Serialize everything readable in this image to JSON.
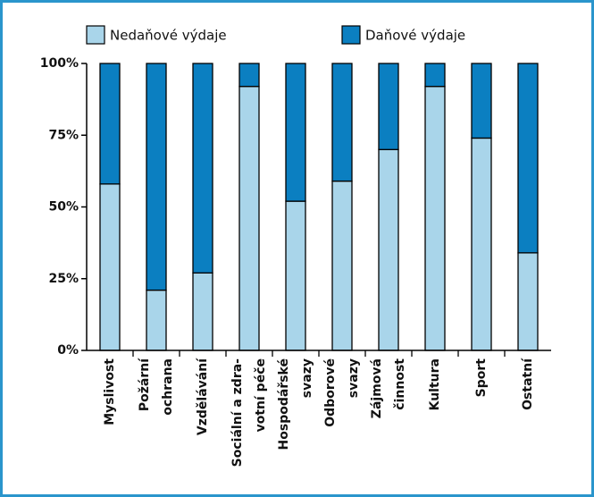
{
  "chart_data": {
    "type": "stacked_bar",
    "categories": [
      [
        "Myslivost"
      ],
      [
        "Požární",
        "ochrana"
      ],
      [
        "Vzdělávání"
      ],
      [
        "Sociální a zdra-",
        "votní péče"
      ],
      [
        "Hospodářské",
        "svazy"
      ],
      [
        "Odborové",
        "svazy"
      ],
      [
        "Zájmová",
        "činnost"
      ],
      [
        "Kultura"
      ],
      [
        "Sport"
      ],
      [
        "Ostatní"
      ]
    ],
    "series": [
      {
        "name": "Nedaňové výdaje",
        "color": "#a9d5ea",
        "values": [
          58,
          21,
          27,
          92,
          52,
          59,
          70,
          92,
          74,
          34
        ]
      },
      {
        "name": "Daňové výdaje",
        "color": "#0b7fc1",
        "values": [
          42,
          79,
          73,
          8,
          48,
          41,
          30,
          8,
          26,
          66
        ]
      }
    ],
    "ylim": [
      0,
      100
    ],
    "yticks": [
      {
        "value": 0,
        "label": "0%"
      },
      {
        "value": 25,
        "label": "25%"
      },
      {
        "value": 50,
        "label": "50%"
      },
      {
        "value": 75,
        "label": "75%"
      },
      {
        "value": 100,
        "label": "100%"
      }
    ]
  }
}
